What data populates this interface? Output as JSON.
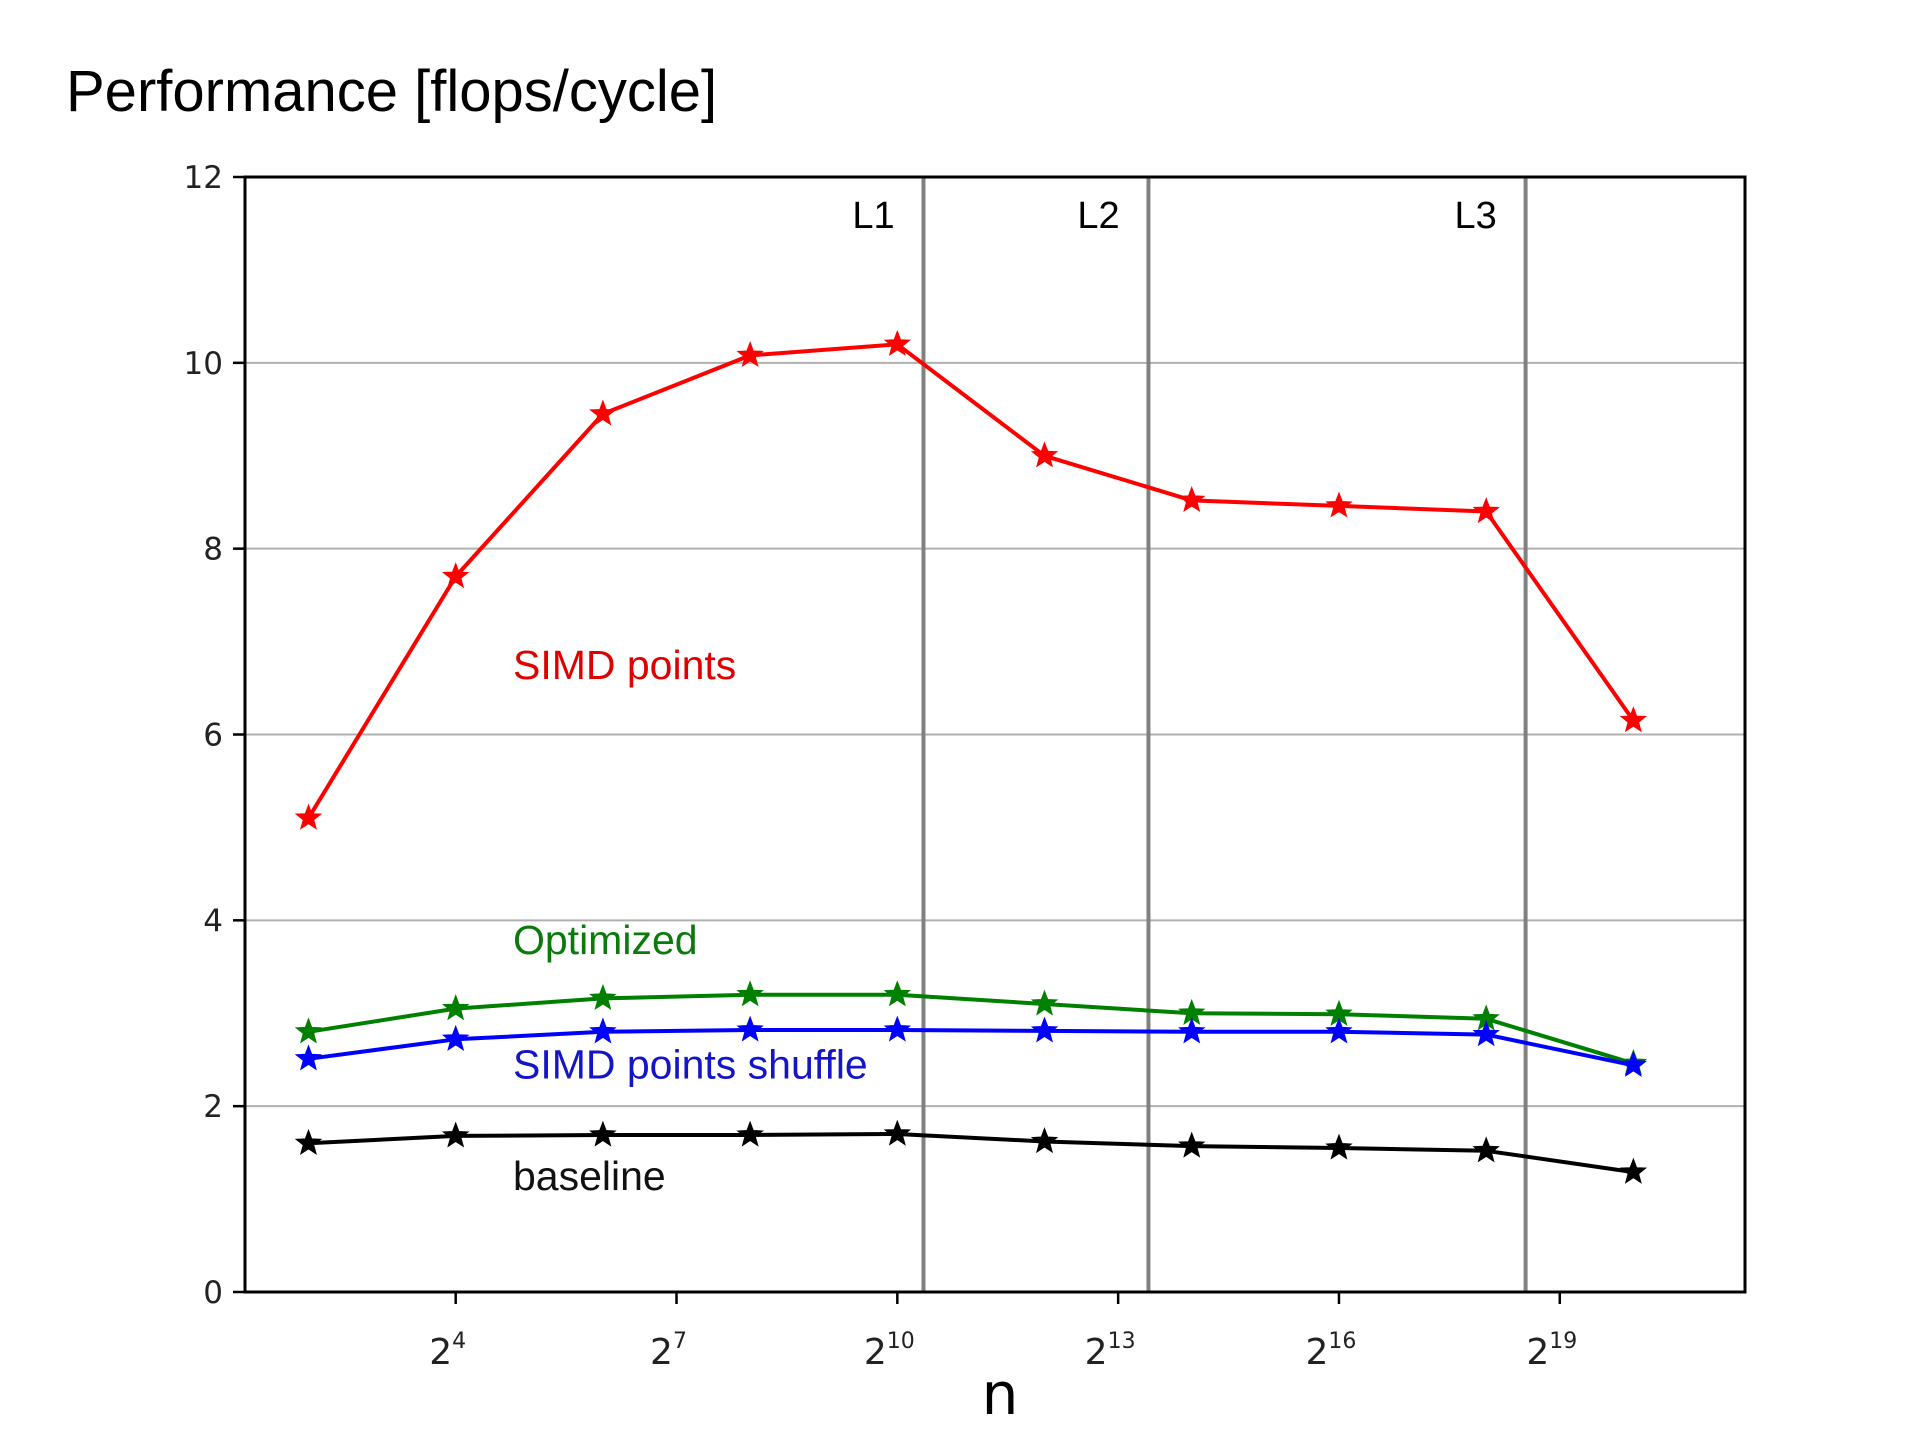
{
  "chart_data": {
    "type": "line",
    "title": "Performance [flops/cycle]",
    "xlabel": "n",
    "ylabel": "",
    "x_scale": "log2",
    "x": [
      4,
      16,
      64,
      256,
      1024,
      4096,
      16384,
      65536,
      262144,
      1048576
    ],
    "xlim": [
      2.2,
      3000000
    ],
    "x_ticks": [
      16,
      128,
      1024,
      8192,
      65536,
      524288
    ],
    "x_tick_bases": [
      "2",
      "2",
      "2",
      "2",
      "2",
      "2"
    ],
    "x_tick_exps": [
      "4",
      "7",
      "10",
      "13",
      "16",
      "19"
    ],
    "ylim": [
      0,
      12
    ],
    "y_ticks": [
      0,
      2,
      4,
      6,
      8,
      10,
      12
    ],
    "y_tick_labels": [
      "0",
      "2",
      "4",
      "6",
      "8",
      "10",
      "12"
    ],
    "grid": "horizontal",
    "series": [
      {
        "name": "SIMD points",
        "color": "#ff0000",
        "label_color": "#e00000",
        "values": [
          5.1,
          7.7,
          9.45,
          10.08,
          10.2,
          9.0,
          8.52,
          8.46,
          8.4,
          6.15
        ]
      },
      {
        "name": "Optimized",
        "color": "#008000",
        "label_color": "#0a7a0a",
        "values": [
          2.8,
          3.05,
          3.16,
          3.2,
          3.2,
          3.1,
          3.0,
          2.99,
          2.94,
          2.46
        ]
      },
      {
        "name": "SIMD points shuffle",
        "color": "#0000ff",
        "label_color": "#1414c8",
        "values": [
          2.51,
          2.72,
          2.8,
          2.82,
          2.82,
          2.81,
          2.8,
          2.8,
          2.77,
          2.44
        ]
      },
      {
        "name": "baseline",
        "color": "#000000",
        "label_color": "#111111",
        "values": [
          1.6,
          1.68,
          1.69,
          1.69,
          1.7,
          1.62,
          1.57,
          1.55,
          1.52,
          1.29
        ]
      }
    ],
    "annotations": [
      {
        "text": "SIMD points",
        "x": 40,
        "y": 6.6
      },
      {
        "text": "Optimized",
        "x": 40,
        "y": 3.64
      },
      {
        "text": "SIMD points shuffle",
        "x": 40,
        "y": 2.3
      },
      {
        "text": "baseline",
        "x": 40,
        "y": 1.1
      }
    ],
    "vlines": [
      {
        "label": "L1",
        "x": 1310
      },
      {
        "label": "L2",
        "x": 10900
      },
      {
        "label": "L3",
        "x": 380000
      }
    ]
  }
}
